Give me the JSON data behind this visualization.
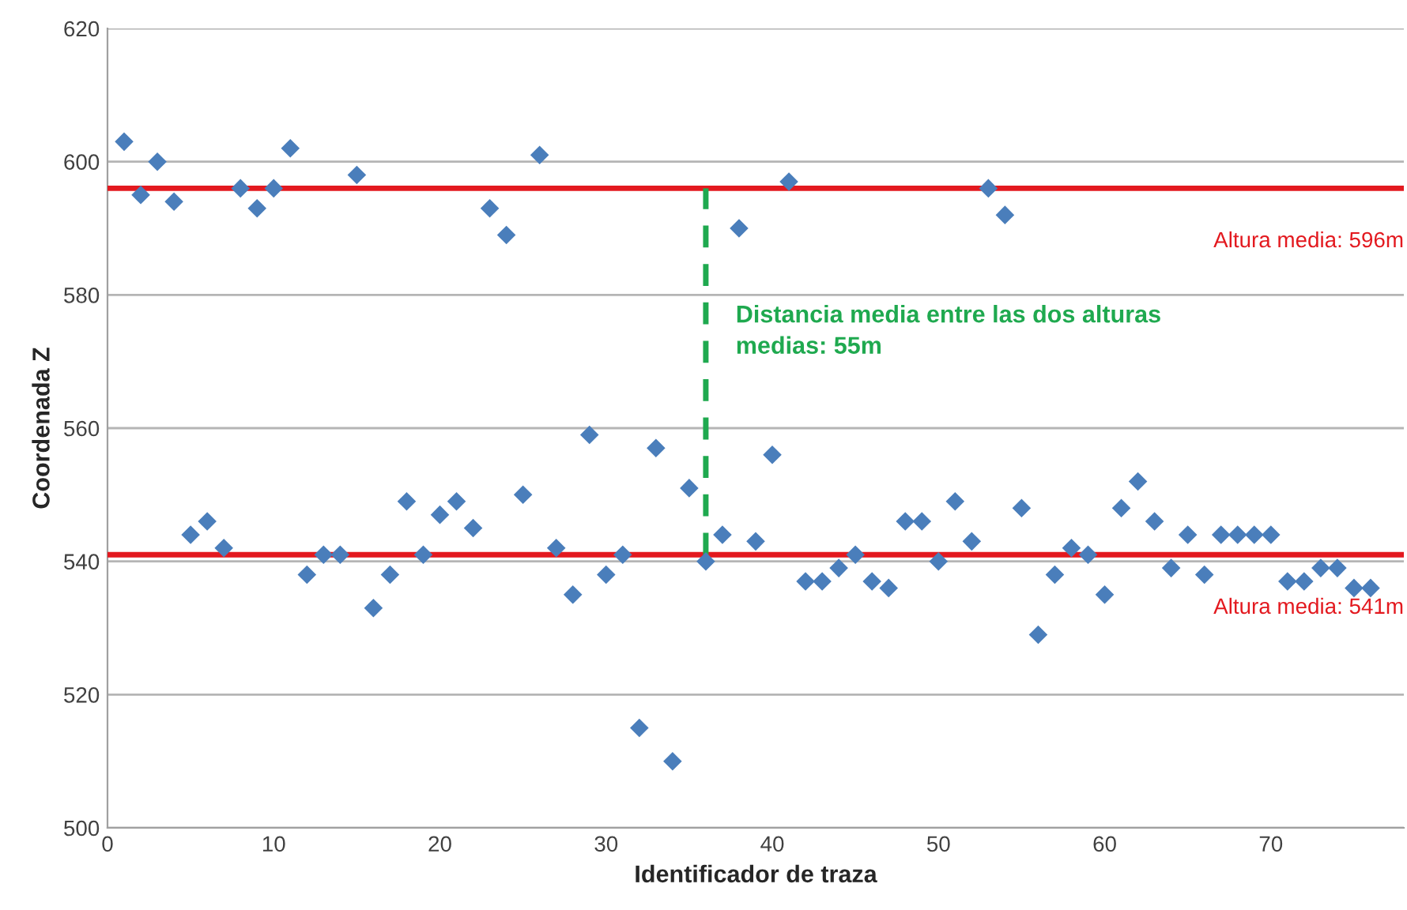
{
  "chart_data": {
    "type": "scatter",
    "xlabel": "Identificador de traza",
    "ylabel": "Coordenada Z",
    "x": [
      1,
      2,
      3,
      4,
      5,
      6,
      7,
      8,
      9,
      10,
      11,
      12,
      13,
      14,
      15,
      16,
      17,
      18,
      19,
      20,
      21,
      22,
      23,
      24,
      25,
      26,
      27,
      28,
      29,
      30,
      31,
      32,
      33,
      34,
      35,
      36,
      37,
      38,
      39,
      40,
      41,
      42,
      43,
      44,
      45,
      46,
      47,
      48,
      49,
      50,
      51,
      52,
      53,
      54,
      55,
      56,
      57,
      58,
      59,
      60,
      61,
      62,
      63,
      64,
      65,
      66,
      67,
      68,
      69,
      70,
      71,
      72,
      73,
      74,
      75,
      76
    ],
    "values": [
      603,
      595,
      600,
      594,
      544,
      546,
      542,
      596,
      593,
      596,
      602,
      538,
      541,
      541,
      598,
      533,
      538,
      549,
      541,
      547,
      549,
      545,
      593,
      589,
      550,
      601,
      542,
      535,
      559,
      538,
      541,
      515,
      557,
      510,
      551,
      540,
      544,
      590,
      543,
      556,
      597,
      537,
      537,
      539,
      541,
      537,
      536,
      546,
      546,
      540,
      549,
      543,
      596,
      592,
      548,
      529,
      538,
      542,
      541,
      535,
      548,
      552,
      546,
      539,
      544,
      538,
      544,
      544,
      544,
      544,
      537,
      537,
      539,
      539,
      536,
      536
    ],
    "color": "#4a7ebb",
    "marker": "diamond",
    "xlim": [
      0,
      78
    ],
    "xticks": [
      0,
      10,
      20,
      30,
      40,
      50,
      60,
      70
    ],
    "ylim": [
      500,
      620
    ],
    "yticks": [
      500,
      520,
      540,
      560,
      580,
      600,
      620
    ],
    "grid": "y",
    "ref_lines": [
      {
        "axis": "y",
        "value": 596,
        "label": "Altura media: 596m",
        "color": "#e3191f",
        "line_style": "solid"
      },
      {
        "axis": "y",
        "value": 541,
        "label": "Altura media: 541m",
        "color": "#e3191f",
        "line_style": "solid"
      },
      {
        "axis": "x",
        "value": 36,
        "color": "#1fa94f",
        "line_style": "dashed"
      }
    ],
    "annotations": [
      "Distancia media entre las dos alturas\nmedias: 55m"
    ]
  }
}
